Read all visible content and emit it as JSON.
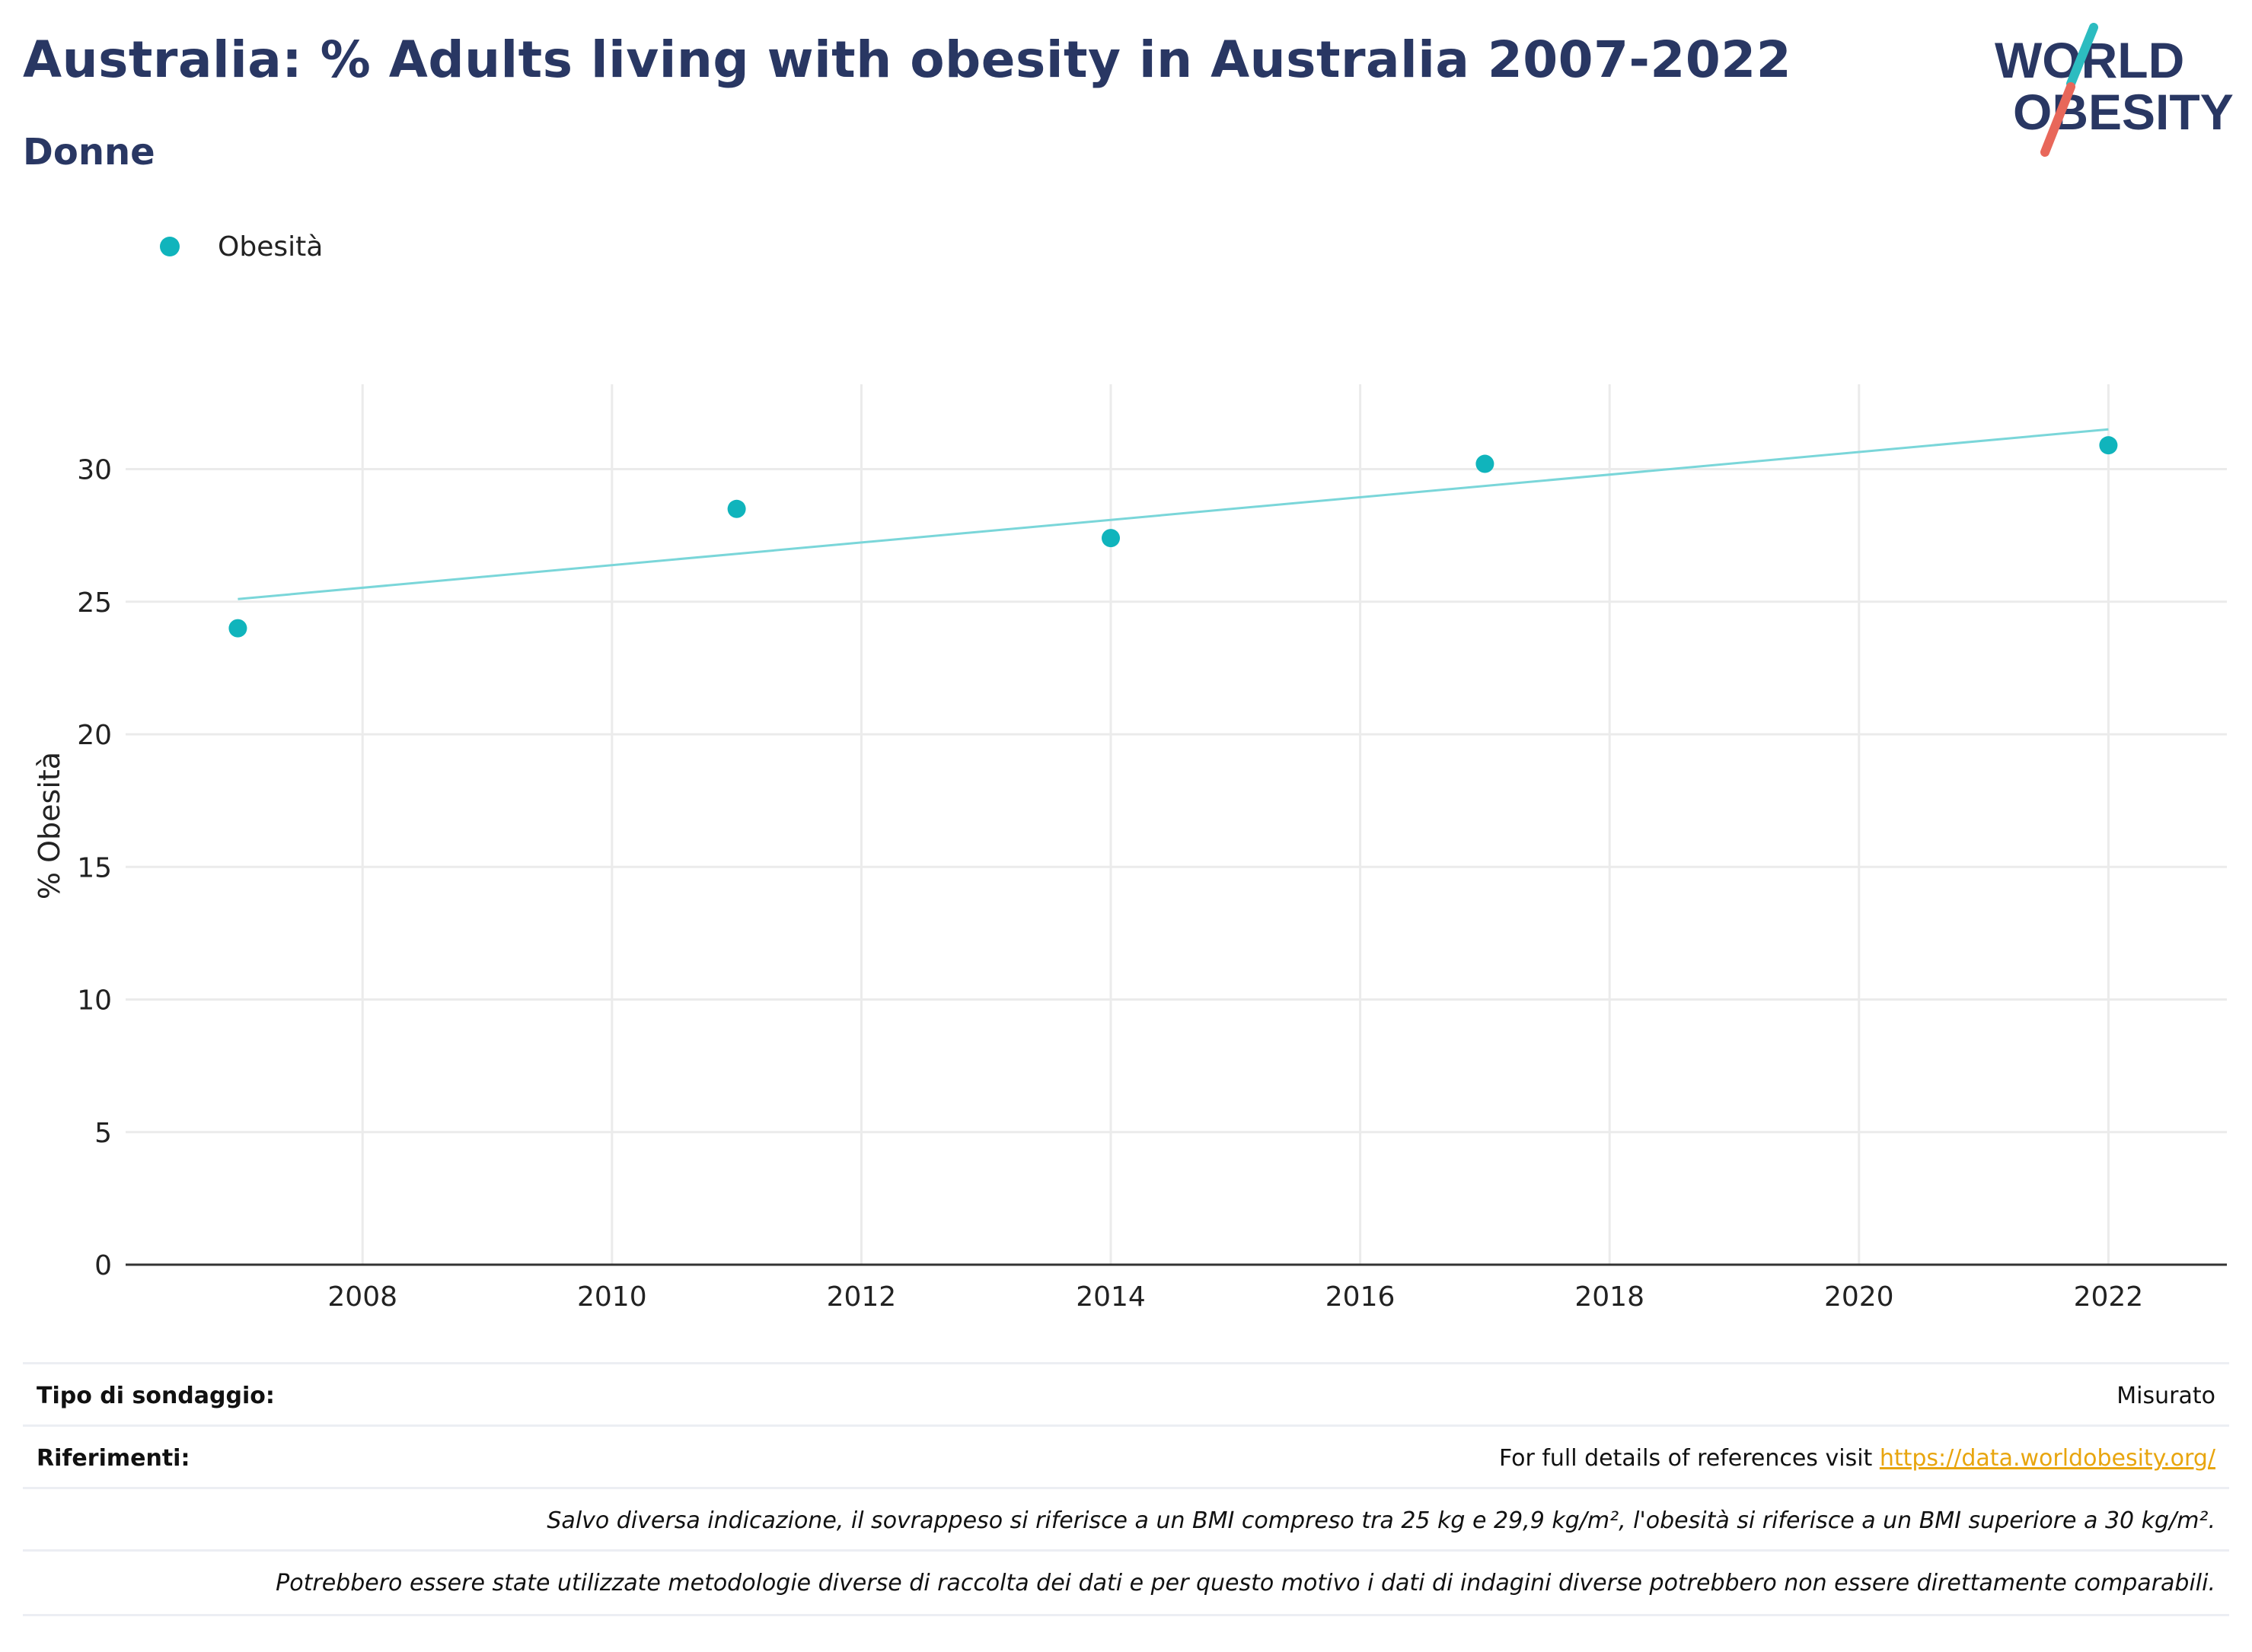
{
  "header": {
    "title": "Australia: % Adults living with obesity in Australia 2007-2022",
    "subtitle": "Donne"
  },
  "logo": {
    "line1": "WORLD",
    "line2": "OBESITY",
    "accent_teal": "#2cbcc0",
    "accent_red": "#e8675a"
  },
  "legend": {
    "label": "Obesità",
    "color": "#10b4bc"
  },
  "chart_data": {
    "type": "scatter",
    "title": "Australia: % Adults living with obesity in Australia 2007-2022",
    "subtitle": "Donne",
    "xlabel": "",
    "ylabel": "% Obesità",
    "xlim": [
      2006.1,
      2022.95
    ],
    "ylim": [
      0,
      33.2
    ],
    "xticks": [
      2008,
      2010,
      2012,
      2014,
      2016,
      2018,
      2020,
      2022
    ],
    "yticks": [
      0,
      5,
      10,
      15,
      20,
      25,
      30
    ],
    "grid": true,
    "legend_position": "top-left",
    "series": [
      {
        "name": "Obesità",
        "x": [
          2007,
          2011,
          2014,
          2017,
          2022
        ],
        "y": [
          24.0,
          28.5,
          27.4,
          30.2,
          30.9
        ],
        "color": "#10b4bc"
      }
    ],
    "trendline": {
      "x": [
        2007,
        2022
      ],
      "y": [
        25.1,
        31.5
      ],
      "color": "#7ad6d9"
    }
  },
  "meta": {
    "survey_type_label": "Tipo di sondaggio:",
    "survey_type_value": "Misurato",
    "references_label": "Riferimenti:",
    "references_text": "For full details of references visit ",
    "references_link": "https://data.worldobesity.org/",
    "note1": "Salvo diversa indicazione, il sovrappeso si riferisce a un BMI compreso tra 25 kg e 29,9 kg/m², l'obesità si riferisce a un BMI superiore a 30 kg/m².",
    "note2": "Potrebbero essere state utilizzate metodologie diverse di raccolta dei dati e per questo motivo i dati di indagini diverse potrebbero non essere direttamente comparabili."
  }
}
